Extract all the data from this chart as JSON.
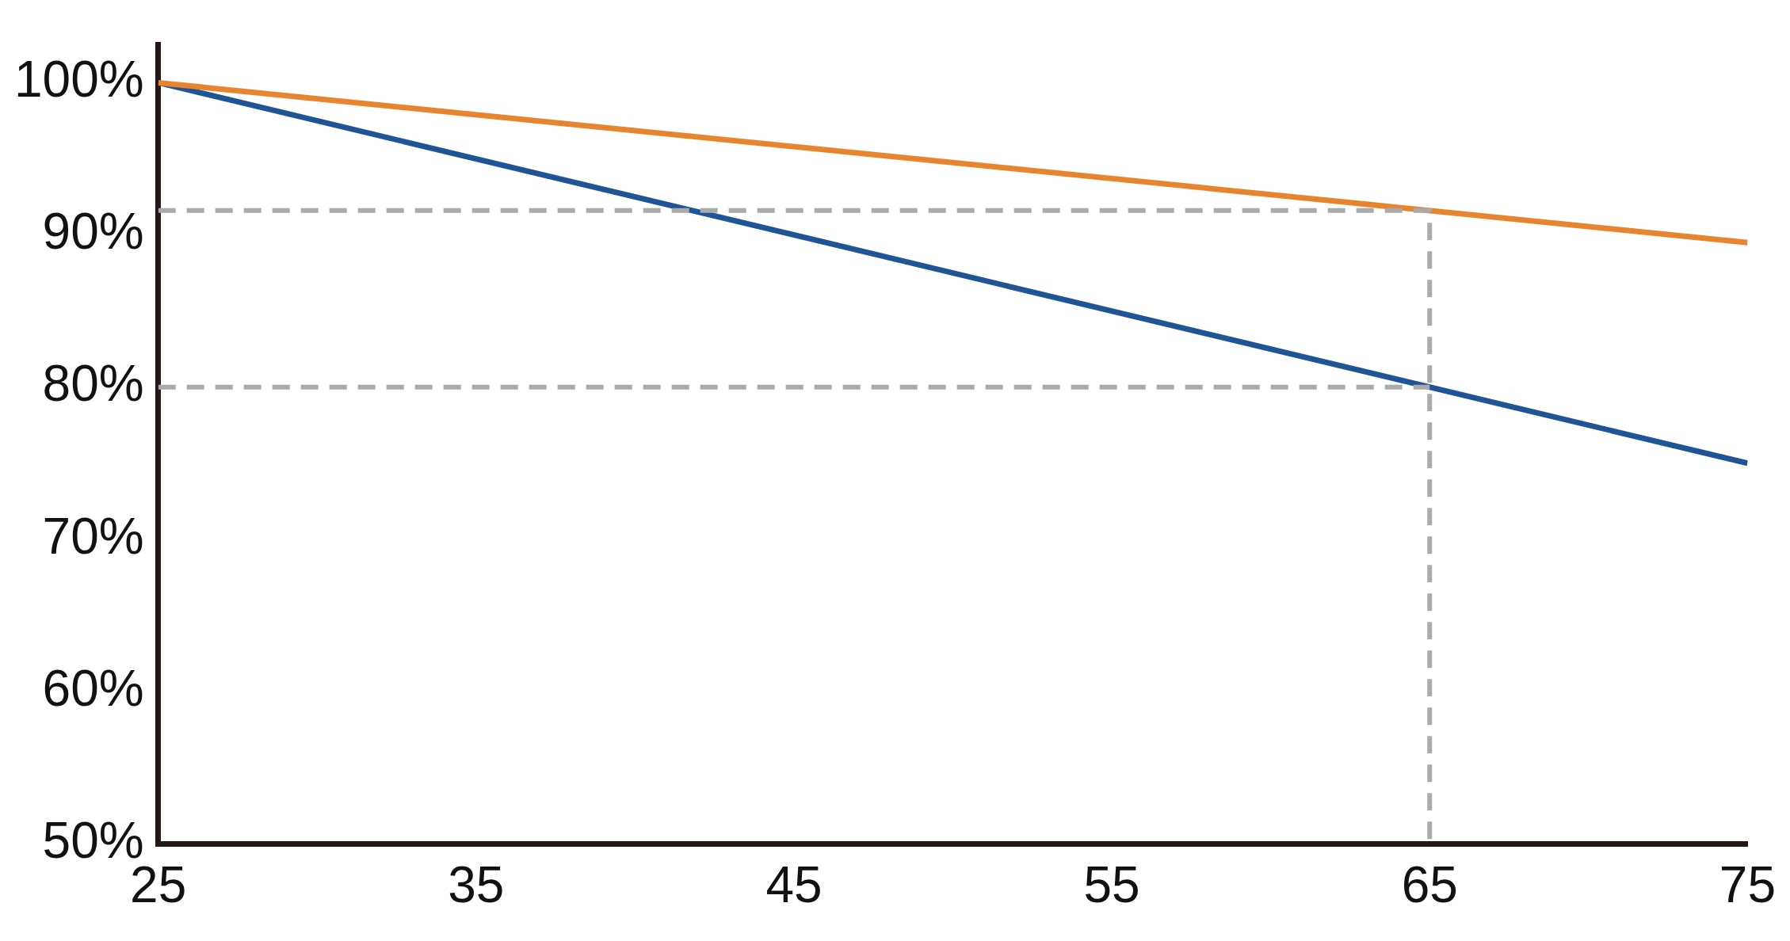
{
  "chart_data": {
    "type": "line",
    "xlim": [
      25,
      75
    ],
    "xticks": [
      25,
      35,
      45,
      55,
      65,
      75
    ],
    "ylim": [
      50,
      102.5
    ],
    "yticks": [
      {
        "value": 50,
        "label": "50%"
      },
      {
        "value": 60,
        "label": "60%"
      },
      {
        "value": 70,
        "label": "70%"
      },
      {
        "value": 80,
        "label": "80%"
      },
      {
        "value": 90,
        "label": "90%"
      },
      {
        "value": 100,
        "label": "100%"
      }
    ],
    "line_style": "solid",
    "marker": "none",
    "legend": false,
    "grid": false,
    "series": [
      {
        "color": "#aaaaaa",
        "line_style": "dashed",
        "x": [
          25,
          65,
          65
        ],
        "values": [
          91.6,
          91.6,
          50
        ]
      },
      {
        "color": "#aaaaaa",
        "line_style": "dashed",
        "x": [
          25,
          65
        ],
        "values": [
          80,
          80
        ]
      },
      {
        "color": "#e8832e",
        "x": [
          25,
          75
        ],
        "values": [
          100,
          89.5
        ]
      },
      {
        "color": "#1f5596",
        "x": [
          25,
          75
        ],
        "values": [
          100,
          75
        ]
      }
    ]
  }
}
